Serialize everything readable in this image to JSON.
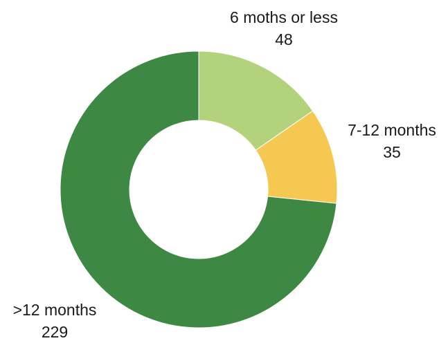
{
  "chart_data": {
    "type": "pie",
    "variant": "donut",
    "title": "",
    "slices": [
      {
        "label": "6 moths or less",
        "value": 48,
        "value_label": "48",
        "color": "#b3d27c"
      },
      {
        "label": "7-12 months",
        "value": 35,
        "value_label": "35",
        "color": "#f5c851"
      },
      {
        "label": ">12 months",
        "value": 229,
        "value_label": "229",
        "color": "#3d8842"
      }
    ],
    "legend": "none",
    "data_labels": "outside"
  }
}
